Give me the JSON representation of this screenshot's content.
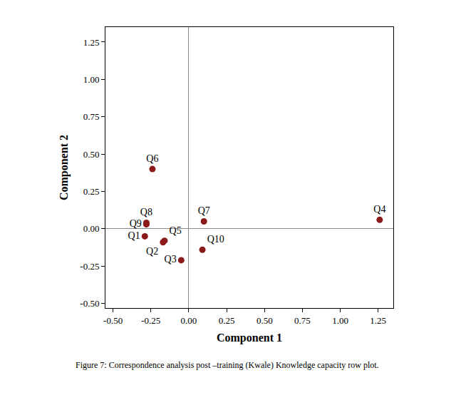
{
  "chart_data": {
    "type": "scatter",
    "x_label": "Component 1",
    "y_label": "Component 2",
    "caption": "Figure 7: Correspondence analysis post –training (Kwale) Knowledge capacity row plot.",
    "labels": [
      "Q1",
      "Q2",
      "Q3",
      "Q4",
      "Q5",
      "Q6",
      "Q7",
      "Q8",
      "Q9",
      "Q10"
    ],
    "x": [
      -0.29,
      -0.17,
      -0.05,
      1.26,
      -0.16,
      -0.24,
      0.1,
      -0.28,
      -0.28,
      0.09
    ],
    "y": [
      -0.05,
      -0.09,
      -0.21,
      0.06,
      -0.08,
      0.4,
      0.05,
      0.04,
      0.03,
      -0.14
    ],
    "color": "#8b1a1a",
    "marker": "circle",
    "xlim": [
      -0.55,
      1.35
    ],
    "ylim": [
      -0.53,
      1.35
    ],
    "xticks": [
      {
        "value": -0.5,
        "label": "-0.50"
      },
      {
        "value": -0.25,
        "label": "-0.25"
      },
      {
        "value": 0,
        "label": "0.00"
      },
      {
        "value": 0.25,
        "label": "0.25"
      },
      {
        "value": 0.5,
        "label": "0.50"
      },
      {
        "value": 0.75,
        "label": "0.75"
      },
      {
        "value": 1,
        "label": "1.00"
      },
      {
        "value": 1.25,
        "label": "1.25"
      }
    ],
    "yticks": [
      {
        "value": -0.5,
        "label": "-0.50"
      },
      {
        "value": -0.25,
        "label": "-0.25"
      },
      {
        "value": 0,
        "label": "0.00"
      },
      {
        "value": 0.25,
        "label": "0.25"
      },
      {
        "value": 0.5,
        "label": "0.50"
      },
      {
        "value": 0.75,
        "label": "0.75"
      },
      {
        "value": 1,
        "label": "1.00"
      },
      {
        "value": 1.25,
        "label": "1.25"
      }
    ],
    "grid": false
  }
}
